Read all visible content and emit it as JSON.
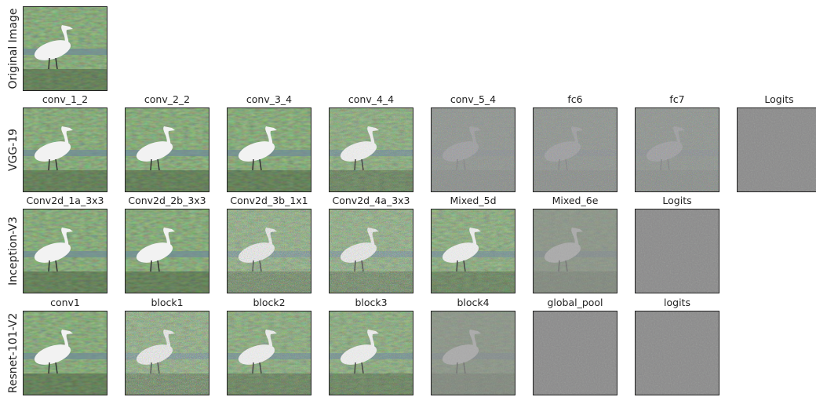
{
  "rows": [
    {
      "label": "Original Image",
      "panels": []
    },
    {
      "label": "VGG-19",
      "panels": [
        "conv_1_2",
        "conv_2_2",
        "conv_3_4",
        "conv_4_4",
        "conv_5_4",
        "fc6",
        "fc7",
        "Logits"
      ]
    },
    {
      "label": "Inception-V3",
      "panels": [
        "Conv2d_1a_3x3",
        "Conv2d_2b_3x3",
        "Conv2d_3b_1x1",
        "Conv2d_4a_3x3",
        "Mixed_5d",
        "Mixed_6e",
        "Logits"
      ]
    },
    {
      "label": "Resnet-101-V2",
      "panels": [
        "conv1",
        "block1",
        "block2",
        "block3",
        "block4",
        "global_pool",
        "logits"
      ]
    }
  ]
}
